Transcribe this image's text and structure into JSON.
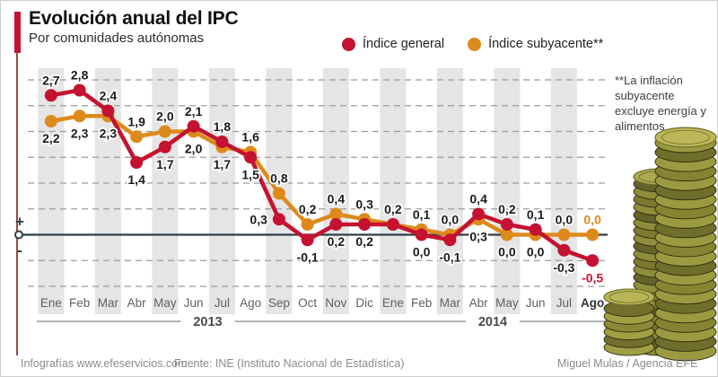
{
  "header": {
    "title": "Evolución anual del IPC",
    "subtitle": "Por comunidades autónomas"
  },
  "legend": {
    "items": [
      {
        "label": "Índice general",
        "color": "#c41230"
      },
      {
        "label": "Índice subyacente**",
        "color": "#de8a1b"
      }
    ]
  },
  "note": "**La inflación subyacente excluye energía y alimentos",
  "axis": {
    "plus": "+",
    "minus": "-"
  },
  "footer": {
    "left": "Infografías www.efeservicios.com",
    "center": "Fuente: INE (Instituto Nacional de Estadística)",
    "right": "Miguel Mulas / Agencia EFE"
  },
  "chart_data": {
    "type": "line",
    "title": "Evolución anual del IPC",
    "categories": [
      "Ene",
      "Feb",
      "Mar",
      "Abr",
      "May",
      "Jun",
      "Jul",
      "Ago",
      "Sep",
      "Oct",
      "Nov",
      "Dic",
      "Ene",
      "Feb",
      "Mar",
      "Abr",
      "May",
      "Jun",
      "Jul",
      "Ago"
    ],
    "bold_category_index": 19,
    "year_groups": [
      {
        "label": "2013",
        "from": 0,
        "to": 11
      },
      {
        "label": "2014",
        "from": 12,
        "to": 19
      }
    ],
    "series": [
      {
        "name": "Índice subyacente",
        "color": "#de8a1b",
        "values": [
          2.2,
          2.3,
          2.3,
          1.9,
          2.0,
          2.0,
          1.7,
          1.6,
          0.8,
          0.2,
          0.4,
          0.3,
          0.2,
          0.1,
          0.0,
          0.3,
          0.0,
          0.0,
          0.0,
          0.0
        ],
        "labels": [
          "2,2",
          "2,3",
          "2,3",
          "1,9",
          "2,0",
          "2,0",
          "1,7",
          "1,6",
          "0,8",
          "0,2",
          "0,4",
          "0,3",
          "",
          "0,1",
          "0,0",
          "0,3",
          "0,0",
          "0,0",
          "0,0",
          "0,0"
        ],
        "label_side": [
          "below",
          "below",
          "below",
          "above",
          "above",
          "below",
          "below",
          "above",
          "above",
          "above",
          "above",
          "above",
          "none",
          "above",
          "above",
          "below",
          "below",
          "below",
          "above",
          "above"
        ],
        "last_label_colored": true
      },
      {
        "name": "Índice general",
        "color": "#c41230",
        "values": [
          2.7,
          2.8,
          2.4,
          1.4,
          1.7,
          2.1,
          1.8,
          1.5,
          0.3,
          -0.1,
          0.2,
          0.2,
          0.2,
          0.0,
          -0.1,
          0.4,
          0.2,
          0.1,
          -0.3,
          -0.5
        ],
        "labels": [
          "2,7",
          "2,8",
          "2,4",
          "1,4",
          "1,7",
          "2,1",
          "1,8",
          "1,5",
          "0,3",
          "-0,1",
          "0,2",
          "0,2",
          "0,2",
          "0,0",
          "-0,1",
          "0,4",
          "0,2",
          "0,1",
          "-0,3",
          "-0,5"
        ],
        "label_side": [
          "above",
          "above",
          "above",
          "below",
          "below",
          "above",
          "above",
          "below",
          "left",
          "below",
          "below",
          "below",
          "above",
          "below",
          "below",
          "above",
          "above",
          "above",
          "below",
          "below"
        ],
        "last_label_colored": true
      }
    ],
    "ylim": [
      -1.0,
      3.0
    ],
    "gridlines": [
      3.0,
      2.5,
      2.0,
      1.5,
      1.0,
      0.5,
      -0.5,
      -1.0
    ],
    "zero_line": 0,
    "decimal_comma": true,
    "legend_position": "top",
    "grid": "dashed-horizontal"
  },
  "colors": {
    "band": "#e5e5e5",
    "gridline": "#9b9b9b",
    "zero_line": "#2f3e4d",
    "month_label": "#606060",
    "value_label": "#1b1b1b",
    "year_label": "#4a4a4a",
    "accent_red": "#c41230"
  }
}
